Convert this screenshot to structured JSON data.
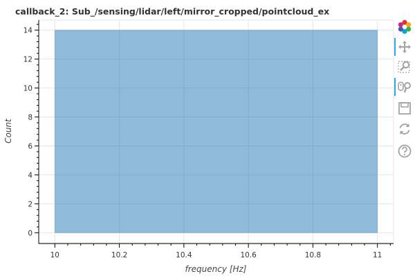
{
  "chart_data": {
    "type": "bar",
    "title": "callback_2: Sub_/sensing/lidar/left/mirror_cropped/pointcloud_ex",
    "xlabel": "frequency [Hz]",
    "ylabel": "Count",
    "bins": [
      {
        "x0": 10,
        "x1": 11,
        "count": 14
      }
    ],
    "xlim": [
      9.95,
      11.05
    ],
    "ylim": [
      -0.7,
      14.7
    ],
    "x_ticks": [
      10,
      10.2,
      10.4,
      10.6,
      10.8,
      11
    ],
    "x_tick_labels": [
      "10",
      "10.2",
      "10.4",
      "10.6",
      "10.8",
      "11"
    ],
    "y_ticks": [
      0,
      2,
      4,
      6,
      8,
      10,
      12,
      14
    ],
    "y_tick_labels": [
      "0",
      "2",
      "4",
      "6",
      "8",
      "10",
      "12",
      "14"
    ],
    "grid": true,
    "bar_color": "#1f77b4",
    "bar_alpha": 0.5
  },
  "toolbar": {
    "tools": [
      {
        "name": "bokeh-logo-icon",
        "active": false
      },
      {
        "name": "pan-icon",
        "active": true
      },
      {
        "name": "box-zoom-icon",
        "active": false
      },
      {
        "name": "wheel-zoom-icon",
        "active": true
      },
      {
        "name": "save-icon",
        "active": false
      },
      {
        "name": "reset-icon",
        "active": false
      },
      {
        "name": "help-icon",
        "active": false
      }
    ]
  }
}
